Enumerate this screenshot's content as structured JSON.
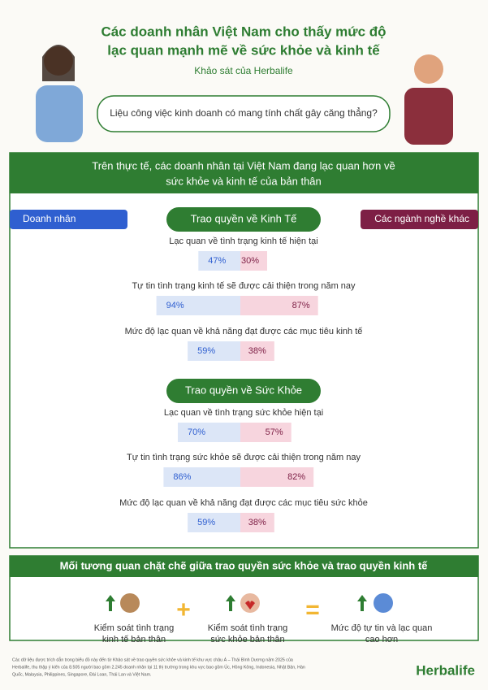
{
  "header": {
    "title_lines": [
      "Các doanh nhân Việt Nam cho thấy mức độ",
      "lạc quan mạnh mẽ về sức khỏe và kinh tế"
    ],
    "subtitle": "Khảo sát của Herbalife",
    "question": "Liệu công việc kinh doanh có mang tính chất gây căng thẳng?"
  },
  "banner": {
    "lines": [
      "Trên thực tế, các doanh nhân tại Việt Nam đang lạc quan hơn về",
      "sức khỏe và kinh tế của bản thân"
    ]
  },
  "legend": {
    "left": "Doanh nhân",
    "right": "Các ngành nghề khác",
    "left_color": "#2f5fd0",
    "right_color": "#7d1f45"
  },
  "sections": [
    {
      "title": "Trao quyền về Kinh Tế",
      "items": [
        {
          "label": "Lạc quan về tình trạng kinh tế hiện tại",
          "entrepreneurs": 47,
          "entrepreneurs_label": "47%",
          "others": 30,
          "others_label": "30%"
        },
        {
          "label": "Tự tin tình trạng kinh tế sẽ được cải thiện trong năm nay",
          "entrepreneurs": 94,
          "entrepreneurs_label": "94%",
          "others": 87,
          "others_label": "87%"
        },
        {
          "label": "Mức độ lạc quan về khả năng đạt được các mục tiêu kinh tế",
          "entrepreneurs": 59,
          "entrepreneurs_label": "59%",
          "others": 38,
          "others_label": "38%"
        }
      ]
    },
    {
      "title": "Trao quyền về Sức Khỏe",
      "items": [
        {
          "label": "Lạc quan về tình trạng sức khỏe hiện tại",
          "entrepreneurs": 70,
          "entrepreneurs_label": "70%",
          "others": 57,
          "others_label": "57%"
        },
        {
          "label": "Tự tin tình trạng sức khỏe sẽ được cải thiện trong năm nay",
          "entrepreneurs": 86,
          "entrepreneurs_label": "86%",
          "others": 82,
          "others_label": "82%"
        },
        {
          "label": "Mức độ lạc quan về khả năng đạt được các mục tiêu sức khỏe",
          "entrepreneurs": 59,
          "entrepreneurs_label": "59%",
          "others": 38,
          "others_label": "38%"
        }
      ]
    }
  ],
  "correlation": {
    "title": "Mối tương quan chặt chẽ giữa trao quyền sức khỏe và trao quyền kinh tế",
    "items": [
      [
        "Kiểm soát tình trạng",
        "kinh tế bản thân"
      ],
      [
        "Kiểm soát tình trạng",
        "sức khỏe bản thân"
      ],
      [
        "Mức độ tự tin và lạc quan",
        "cao hơn"
      ]
    ]
  },
  "footnote": [
    "Các dữ liệu được trích dẫn trong biểu đồ này đến từ Khảo sát về trao quyền sức khỏe và kinh tế khu vực châu Á – Thái Bình Dương năm 2025 của",
    "Herbalife, thu thập ý kiến của 8.505 người bao gồm 2.245 doanh nhân tại 11 thị trường trong khu vực bao gồm Úc, Hồng Kông, Indonesia, Nhật Bản, Hàn",
    "Quốc, Malaysia, Philippines, Singapore, Đài Loan, Thái Lan và Việt Nam."
  ],
  "brand": "Herbalife"
}
